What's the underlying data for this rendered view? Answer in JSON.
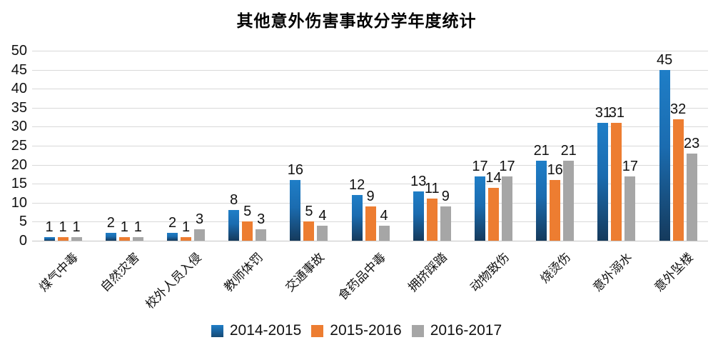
{
  "chart_data": {
    "type": "bar",
    "title": "其他意外伤害事故分学年度统计",
    "categories": [
      "煤气中毒",
      "自然灾害",
      "校外人员入侵",
      "教师体罚",
      "交通事故",
      "食药品中毒",
      "拥挤踩踏",
      "动物致伤",
      "烧烫伤",
      "意外溺水",
      "意外坠楼"
    ],
    "series": [
      {
        "name": "2014-2015",
        "values": [
          1,
          2,
          2,
          8,
          16,
          12,
          13,
          17,
          21,
          31,
          45
        ],
        "color": "#1b6cb0",
        "color_top": "#1f7ec7",
        "color_bottom": "#153a5c"
      },
      {
        "name": "2015-2016",
        "values": [
          1,
          1,
          1,
          5,
          5,
          9,
          11,
          14,
          16,
          31,
          32
        ],
        "color": "#ed7d31"
      },
      {
        "name": "2016-2017",
        "values": [
          1,
          1,
          3,
          3,
          4,
          4,
          9,
          17,
          21,
          17,
          23
        ],
        "color": "#a6a6a6"
      }
    ],
    "xlabel": "",
    "ylabel": "",
    "ylim": [
      0,
      50
    ],
    "ytick_step": 5,
    "yticks": [
      "0",
      "5",
      "10",
      "15",
      "20",
      "25",
      "30",
      "35",
      "40",
      "45",
      "50"
    ],
    "grid": true,
    "data_labels": true,
    "legend_position": "bottom"
  },
  "colors": {
    "gridline": "#d9d9d9",
    "axis_line": "#c6c6c6",
    "text": "#111111",
    "series_blue": "#1b6cb0",
    "series_orange": "#ed7d31",
    "series_gray": "#a6a6a6"
  }
}
